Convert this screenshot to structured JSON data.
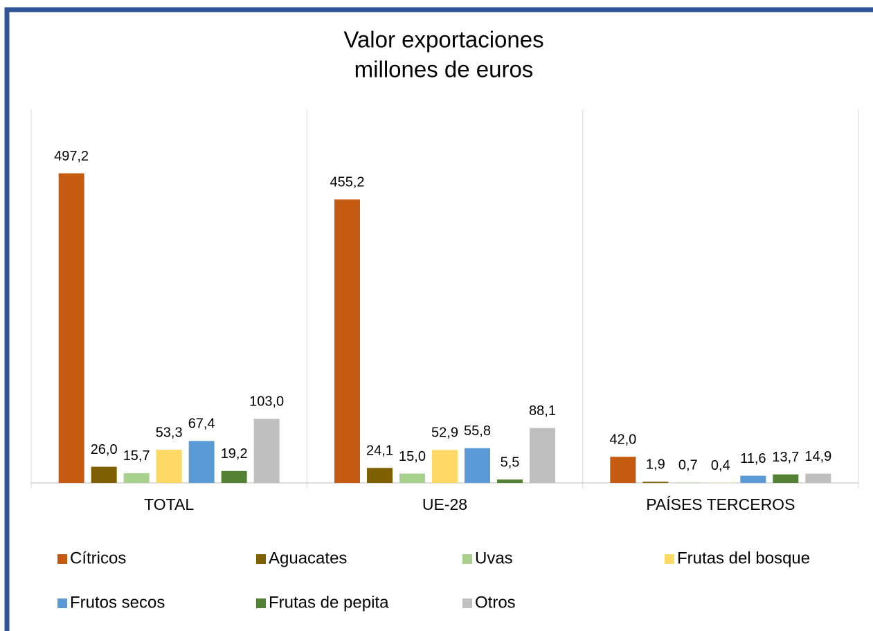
{
  "chart_data": {
    "type": "bar",
    "title": "Valor exportaciones",
    "subtitle": "millones de euros",
    "categories": [
      "TOTAL",
      "UE-28",
      "PAÍSES TERCEROS"
    ],
    "ylim": [
      0,
      600
    ],
    "series": [
      {
        "name": "Cítricos",
        "color": "#c55a11",
        "values": [
          497.2,
          455.2,
          42.0
        ],
        "value_labels": [
          "497,2",
          "455,2",
          "42,0"
        ]
      },
      {
        "name": "Aguacates",
        "color": "#7f6000",
        "values": [
          26.0,
          24.1,
          1.9
        ],
        "value_labels": [
          "26,0",
          "24,1",
          "1,9"
        ]
      },
      {
        "name": "Uvas",
        "color": "#a9d18e",
        "values": [
          15.7,
          15.0,
          0.7
        ],
        "value_labels": [
          "15,7",
          "15,0",
          "0,7"
        ]
      },
      {
        "name": "Frutas del bosque",
        "color": "#ffd966",
        "values": [
          53.3,
          52.9,
          0.4
        ],
        "value_labels": [
          "53,3",
          "52,9",
          "0,4"
        ]
      },
      {
        "name": "Frutos secos",
        "color": "#5b9bd5",
        "values": [
          67.4,
          55.8,
          11.6
        ],
        "value_labels": [
          "67,4",
          "55,8",
          "11,6"
        ]
      },
      {
        "name": "Frutas de pepita",
        "color": "#548235",
        "values": [
          19.2,
          5.5,
          13.7
        ],
        "value_labels": [
          "19,2",
          "5,5",
          "13,7"
        ]
      },
      {
        "name": "Otros",
        "color": "#bfbfbf",
        "values": [
          103.0,
          88.1,
          14.9
        ],
        "value_labels": [
          "103,0",
          "88,1",
          "14,9"
        ]
      }
    ]
  }
}
